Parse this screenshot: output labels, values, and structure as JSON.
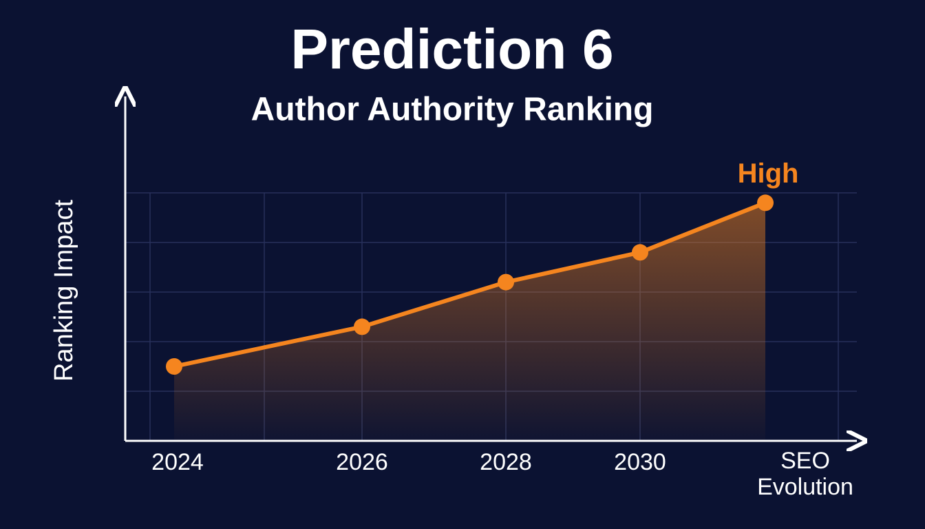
{
  "chart_data": {
    "type": "line",
    "title": "Prediction 6",
    "subtitle": "Author Authority Ranking",
    "y_label": "Ranking Impact",
    "x_label": "SEO Evolution",
    "categories": [
      "2024",
      "2026",
      "2028",
      "2030",
      null
    ],
    "values": [
      1.5,
      2.3,
      3.2,
      3.8,
      4.8
    ],
    "color": "#f5851f",
    "annotation": "High",
    "ylim": [
      0,
      5
    ],
    "yticks": [
      1,
      2,
      3,
      4,
      5
    ],
    "grid": true
  }
}
